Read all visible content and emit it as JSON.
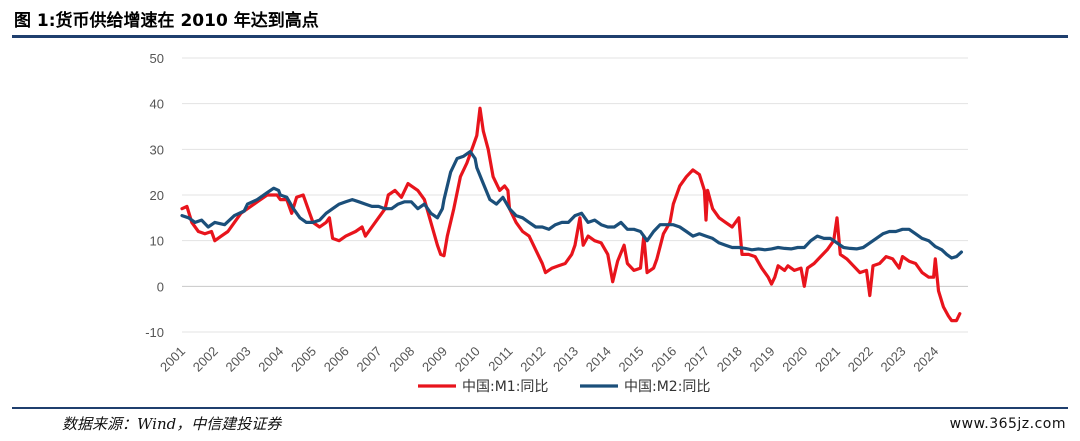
{
  "title": "图 1:货币供给增速在 2010 年达到高点",
  "source": "数据来源：Wind，中信建投证券",
  "watermark": "www.365jz.com",
  "chart_data": {
    "type": "line",
    "title": "",
    "xlabel": "",
    "ylabel": "",
    "xlim": [
      2001,
      2025
    ],
    "ylim": [
      -10,
      50
    ],
    "yticks": [
      -10,
      0,
      10,
      20,
      30,
      40,
      50
    ],
    "xticks": [
      "2001",
      "2002",
      "2003",
      "2004",
      "2005",
      "2006",
      "2007",
      "2008",
      "2009",
      "2010",
      "2011",
      "2012",
      "2013",
      "2014",
      "2015",
      "2016",
      "2017",
      "2018",
      "2019",
      "2020",
      "2021",
      "2022",
      "2023",
      "2024"
    ],
    "grid": true,
    "legend": "bottom",
    "series": [
      {
        "name": "中国:M1:同比",
        "color": "#e8141c",
        "points": [
          [
            2001.0,
            17
          ],
          [
            2001.15,
            17.5
          ],
          [
            2001.3,
            14
          ],
          [
            2001.5,
            12
          ],
          [
            2001.7,
            11.5
          ],
          [
            2001.9,
            12
          ],
          [
            2002.0,
            10
          ],
          [
            2002.2,
            11
          ],
          [
            2002.4,
            12
          ],
          [
            2002.6,
            14
          ],
          [
            2002.8,
            16
          ],
          [
            2003.0,
            17
          ],
          [
            2003.3,
            18.5
          ],
          [
            2003.6,
            20
          ],
          [
            2003.9,
            20
          ],
          [
            2004.0,
            19
          ],
          [
            2004.2,
            19
          ],
          [
            2004.35,
            16
          ],
          [
            2004.5,
            19.5
          ],
          [
            2004.7,
            20
          ],
          [
            2004.9,
            16
          ],
          [
            2005.0,
            14
          ],
          [
            2005.2,
            13
          ],
          [
            2005.4,
            14
          ],
          [
            2005.5,
            15
          ],
          [
            2005.6,
            10.5
          ],
          [
            2005.8,
            10
          ],
          [
            2006.0,
            11
          ],
          [
            2006.3,
            12
          ],
          [
            2006.5,
            13
          ],
          [
            2006.6,
            11
          ],
          [
            2006.8,
            13
          ],
          [
            2007.0,
            15
          ],
          [
            2007.2,
            17
          ],
          [
            2007.3,
            20
          ],
          [
            2007.5,
            21
          ],
          [
            2007.7,
            19.5
          ],
          [
            2007.9,
            22.5
          ],
          [
            2008.0,
            22
          ],
          [
            2008.2,
            21
          ],
          [
            2008.4,
            19
          ],
          [
            2008.6,
            14
          ],
          [
            2008.8,
            9
          ],
          [
            2008.9,
            7
          ],
          [
            2009.0,
            6.7
          ],
          [
            2009.1,
            11
          ],
          [
            2009.3,
            17
          ],
          [
            2009.5,
            24
          ],
          [
            2009.7,
            27
          ],
          [
            2009.9,
            31
          ],
          [
            2010.0,
            33
          ],
          [
            2010.1,
            39
          ],
          [
            2010.2,
            34
          ],
          [
            2010.35,
            30
          ],
          [
            2010.5,
            24
          ],
          [
            2010.7,
            21
          ],
          [
            2010.85,
            22
          ],
          [
            2010.95,
            21
          ],
          [
            2011.0,
            17
          ],
          [
            2011.2,
            14
          ],
          [
            2011.4,
            12
          ],
          [
            2011.6,
            11
          ],
          [
            2011.8,
            8
          ],
          [
            2012.0,
            5
          ],
          [
            2012.1,
            3
          ],
          [
            2012.3,
            4
          ],
          [
            2012.5,
            4.5
          ],
          [
            2012.7,
            5
          ],
          [
            2012.9,
            7
          ],
          [
            2013.0,
            9
          ],
          [
            2013.15,
            15
          ],
          [
            2013.25,
            9
          ],
          [
            2013.4,
            11
          ],
          [
            2013.6,
            10
          ],
          [
            2013.8,
            9.5
          ],
          [
            2014.0,
            7
          ],
          [
            2014.15,
            1
          ],
          [
            2014.3,
            5.5
          ],
          [
            2014.5,
            9
          ],
          [
            2014.6,
            5
          ],
          [
            2014.8,
            3.5
          ],
          [
            2015.0,
            4
          ],
          [
            2015.1,
            11
          ],
          [
            2015.2,
            3
          ],
          [
            2015.4,
            4
          ],
          [
            2015.5,
            6
          ],
          [
            2015.7,
            11.5
          ],
          [
            2015.9,
            14
          ],
          [
            2016.0,
            18
          ],
          [
            2016.2,
            22
          ],
          [
            2016.4,
            24
          ],
          [
            2016.6,
            25.5
          ],
          [
            2016.8,
            24.5
          ],
          [
            2016.95,
            21
          ],
          [
            2017.0,
            14.5
          ],
          [
            2017.05,
            21
          ],
          [
            2017.2,
            17
          ],
          [
            2017.4,
            15
          ],
          [
            2017.6,
            14
          ],
          [
            2017.8,
            13
          ],
          [
            2018.0,
            15
          ],
          [
            2018.1,
            7
          ],
          [
            2018.3,
            7
          ],
          [
            2018.5,
            6.5
          ],
          [
            2018.7,
            4
          ],
          [
            2018.9,
            2
          ],
          [
            2019.0,
            0.5
          ],
          [
            2019.1,
            2
          ],
          [
            2019.2,
            4.5
          ],
          [
            2019.4,
            3.5
          ],
          [
            2019.5,
            4.5
          ],
          [
            2019.7,
            3.5
          ],
          [
            2019.9,
            4
          ],
          [
            2020.0,
            0
          ],
          [
            2020.1,
            4
          ],
          [
            2020.3,
            5
          ],
          [
            2020.5,
            6.5
          ],
          [
            2020.7,
            8
          ],
          [
            2020.9,
            10
          ],
          [
            2021.0,
            15
          ],
          [
            2021.1,
            7
          ],
          [
            2021.3,
            6
          ],
          [
            2021.5,
            4.5
          ],
          [
            2021.7,
            3
          ],
          [
            2021.9,
            3.5
          ],
          [
            2022.0,
            -2
          ],
          [
            2022.1,
            4.5
          ],
          [
            2022.3,
            5
          ],
          [
            2022.5,
            6.5
          ],
          [
            2022.7,
            6
          ],
          [
            2022.9,
            4
          ],
          [
            2023.0,
            6.5
          ],
          [
            2023.2,
            5.5
          ],
          [
            2023.4,
            5
          ],
          [
            2023.6,
            3
          ],
          [
            2023.8,
            2
          ],
          [
            2023.95,
            2
          ],
          [
            2024.0,
            6
          ],
          [
            2024.1,
            -1
          ],
          [
            2024.25,
            -4.5
          ],
          [
            2024.4,
            -6.5
          ],
          [
            2024.5,
            -7.5
          ],
          [
            2024.65,
            -7.5
          ],
          [
            2024.75,
            -6
          ]
        ]
      },
      {
        "name": "中国:M2:同比",
        "color": "#1b4f7a",
        "points": [
          [
            2001.0,
            15.5
          ],
          [
            2001.2,
            15
          ],
          [
            2001.4,
            14
          ],
          [
            2001.6,
            14.5
          ],
          [
            2001.8,
            13
          ],
          [
            2002.0,
            14
          ],
          [
            2002.3,
            13.5
          ],
          [
            2002.6,
            15.5
          ],
          [
            2002.9,
            16.5
          ],
          [
            2003.0,
            18
          ],
          [
            2003.3,
            19
          ],
          [
            2003.6,
            20.5
          ],
          [
            2003.8,
            21.5
          ],
          [
            2003.95,
            21
          ],
          [
            2004.0,
            20
          ],
          [
            2004.2,
            19.5
          ],
          [
            2004.4,
            17
          ],
          [
            2004.6,
            15
          ],
          [
            2004.8,
            14
          ],
          [
            2005.0,
            14
          ],
          [
            2005.2,
            14.5
          ],
          [
            2005.4,
            16
          ],
          [
            2005.6,
            17
          ],
          [
            2005.8,
            18
          ],
          [
            2006.0,
            18.5
          ],
          [
            2006.2,
            19
          ],
          [
            2006.4,
            18.5
          ],
          [
            2006.6,
            18
          ],
          [
            2006.8,
            17.5
          ],
          [
            2007.0,
            17.5
          ],
          [
            2007.2,
            17
          ],
          [
            2007.4,
            17
          ],
          [
            2007.6,
            18
          ],
          [
            2007.8,
            18.5
          ],
          [
            2008.0,
            18.5
          ],
          [
            2008.2,
            17
          ],
          [
            2008.4,
            18
          ],
          [
            2008.6,
            16
          ],
          [
            2008.8,
            15
          ],
          [
            2008.95,
            17
          ],
          [
            2009.0,
            19
          ],
          [
            2009.2,
            25
          ],
          [
            2009.4,
            28
          ],
          [
            2009.6,
            28.5
          ],
          [
            2009.8,
            29.5
          ],
          [
            2009.95,
            28
          ],
          [
            2010.0,
            26
          ],
          [
            2010.2,
            22.5
          ],
          [
            2010.4,
            19
          ],
          [
            2010.6,
            18
          ],
          [
            2010.8,
            19.5
          ],
          [
            2011.0,
            17
          ],
          [
            2011.2,
            15.5
          ],
          [
            2011.4,
            15
          ],
          [
            2011.6,
            14
          ],
          [
            2011.8,
            13
          ],
          [
            2012.0,
            13
          ],
          [
            2012.2,
            12.5
          ],
          [
            2012.4,
            13.5
          ],
          [
            2012.6,
            14
          ],
          [
            2012.8,
            14
          ],
          [
            2013.0,
            15.5
          ],
          [
            2013.2,
            16
          ],
          [
            2013.4,
            14
          ],
          [
            2013.6,
            14.5
          ],
          [
            2013.8,
            13.5
          ],
          [
            2014.0,
            13
          ],
          [
            2014.2,
            13
          ],
          [
            2014.4,
            14
          ],
          [
            2014.6,
            12.5
          ],
          [
            2014.8,
            12.5
          ],
          [
            2015.0,
            12
          ],
          [
            2015.2,
            10
          ],
          [
            2015.4,
            12
          ],
          [
            2015.6,
            13.5
          ],
          [
            2015.8,
            13.5
          ],
          [
            2016.0,
            13.5
          ],
          [
            2016.2,
            13
          ],
          [
            2016.4,
            12
          ],
          [
            2016.6,
            11
          ],
          [
            2016.8,
            11.5
          ],
          [
            2017.0,
            11
          ],
          [
            2017.2,
            10.5
          ],
          [
            2017.4,
            9.5
          ],
          [
            2017.6,
            9
          ],
          [
            2017.8,
            8.5
          ],
          [
            2018.0,
            8.5
          ],
          [
            2018.2,
            8.3
          ],
          [
            2018.4,
            8
          ],
          [
            2018.6,
            8.2
          ],
          [
            2018.8,
            8
          ],
          [
            2019.0,
            8.2
          ],
          [
            2019.2,
            8.5
          ],
          [
            2019.4,
            8.3
          ],
          [
            2019.6,
            8.2
          ],
          [
            2019.8,
            8.5
          ],
          [
            2020.0,
            8.5
          ],
          [
            2020.2,
            10
          ],
          [
            2020.4,
            11
          ],
          [
            2020.6,
            10.5
          ],
          [
            2020.8,
            10.5
          ],
          [
            2021.0,
            9.5
          ],
          [
            2021.2,
            8.5
          ],
          [
            2021.4,
            8.3
          ],
          [
            2021.6,
            8.2
          ],
          [
            2021.8,
            8.5
          ],
          [
            2022.0,
            9.5
          ],
          [
            2022.2,
            10.5
          ],
          [
            2022.4,
            11.5
          ],
          [
            2022.6,
            12
          ],
          [
            2022.8,
            12
          ],
          [
            2023.0,
            12.5
          ],
          [
            2023.2,
            12.5
          ],
          [
            2023.4,
            11.5
          ],
          [
            2023.6,
            10.5
          ],
          [
            2023.8,
            10
          ],
          [
            2024.0,
            8.7
          ],
          [
            2024.2,
            8
          ],
          [
            2024.35,
            7
          ],
          [
            2024.5,
            6.2
          ],
          [
            2024.65,
            6.5
          ],
          [
            2024.8,
            7.5
          ]
        ]
      }
    ]
  }
}
